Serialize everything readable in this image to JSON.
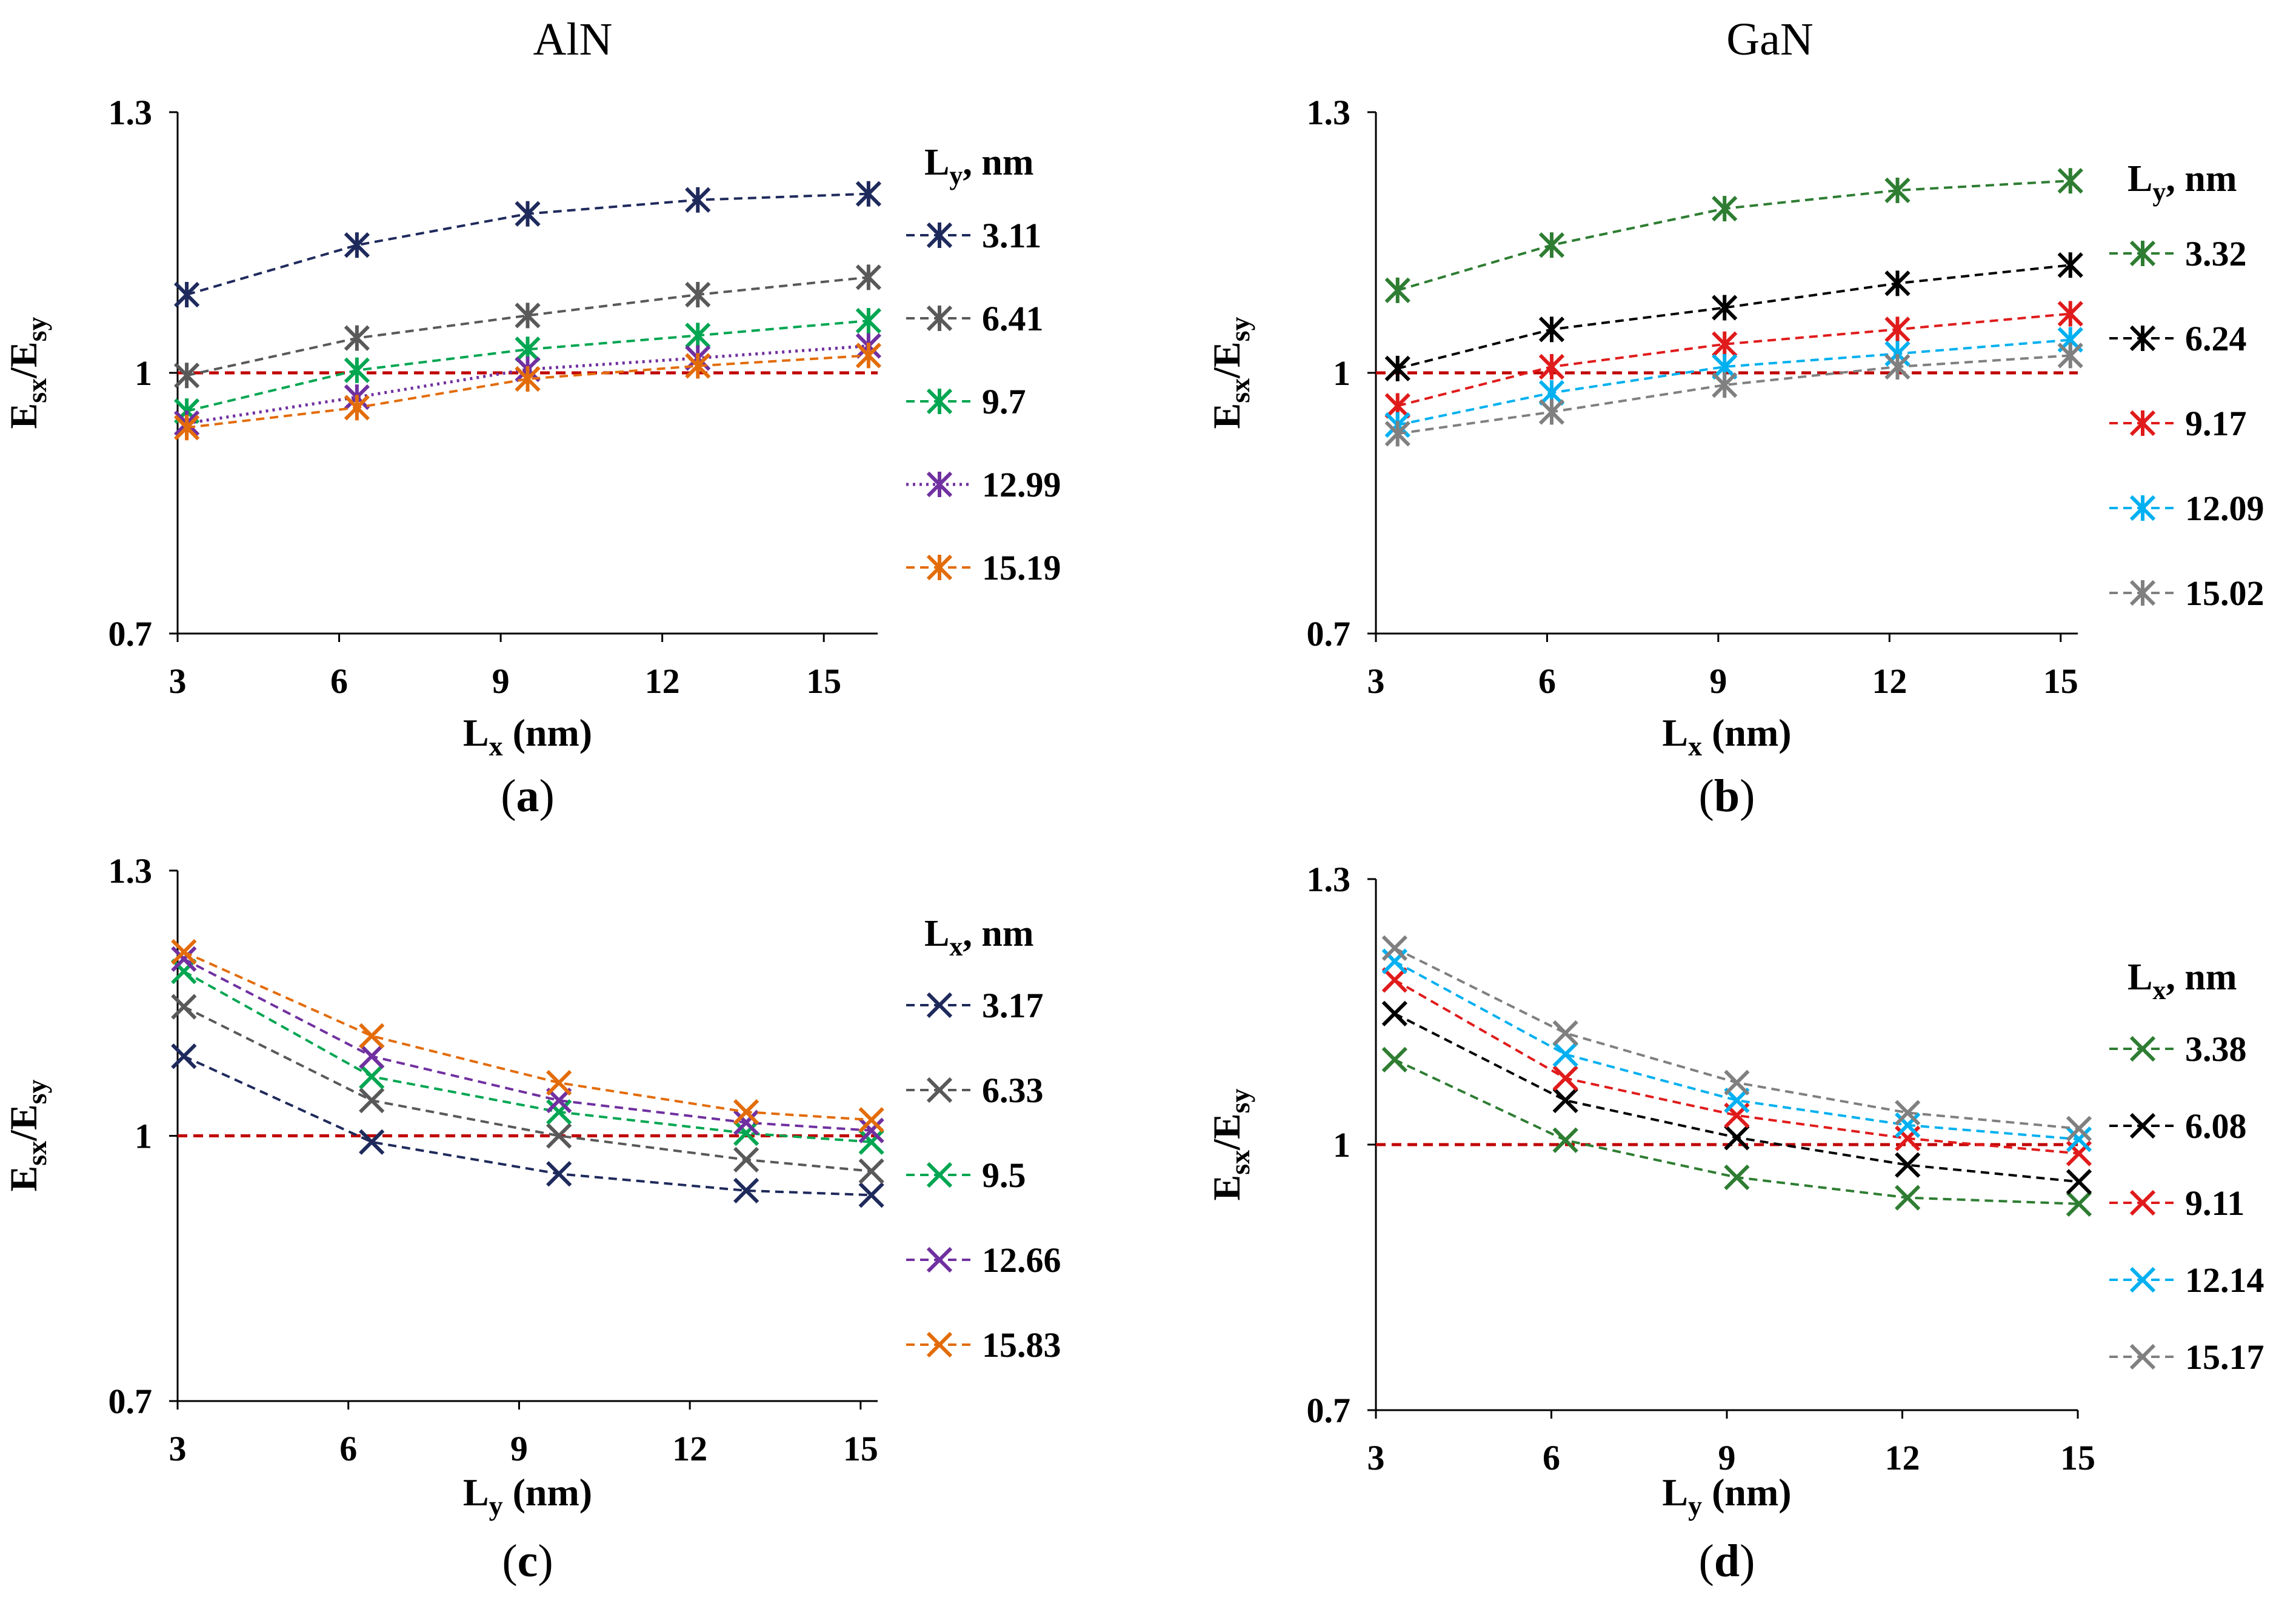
{
  "figure": {
    "column_titles": [
      "AlN",
      "GaN"
    ]
  },
  "chart_data": [
    {
      "type": "line",
      "panel_label": "a",
      "column_title": "AlN",
      "xlabel": "Lx (nm)",
      "xlabel_main": "L",
      "xlabel_sub": "x",
      "xlabel_rest": " (nm)",
      "ylabel": "Esx/Esy",
      "xlim": [
        3,
        16
      ],
      "ylim": [
        0.7,
        1.3
      ],
      "xticks": [
        3,
        6,
        9,
        12,
        15
      ],
      "yticks": [
        0.7,
        1,
        1.3
      ],
      "ytick_labels": [
        "0.7",
        "1",
        "1.3"
      ],
      "marker": "asterisk",
      "legend_title_main": "L",
      "legend_title_sub": "y",
      "legend_title_rest": ", nm",
      "reference_line": {
        "y": 1,
        "color": "#c00000"
      },
      "series": [
        {
          "name": "3.11",
          "color": "#1f2a5c",
          "dash": "dashed",
          "x": [
            3.17,
            6.33,
            9.5,
            12.66,
            15.83
          ],
          "values": [
            1.09,
            1.147,
            1.183,
            1.199,
            1.206
          ]
        },
        {
          "name": "6.41",
          "color": "#595959",
          "dash": "dashed",
          "x": [
            3.17,
            6.33,
            9.5,
            12.66,
            15.83
          ],
          "values": [
            0.997,
            1.04,
            1.066,
            1.09,
            1.11
          ]
        },
        {
          "name": "9.7",
          "color": "#00a651",
          "dash": "dashed",
          "x": [
            3.17,
            6.33,
            9.5,
            12.66,
            15.83
          ],
          "values": [
            0.956,
            1.003,
            1.027,
            1.043,
            1.06
          ]
        },
        {
          "name": "12.99",
          "color": "#7030a0",
          "dash": "dotted",
          "x": [
            3.17,
            6.33,
            9.5,
            12.66,
            15.83
          ],
          "values": [
            0.942,
            0.972,
            1.004,
            1.017,
            1.031
          ]
        },
        {
          "name": "15.19",
          "color": "#e36c0a",
          "dash": "dashed",
          "x": [
            3.17,
            6.33,
            9.5,
            12.66,
            15.83
          ],
          "values": [
            0.937,
            0.96,
            0.993,
            1.008,
            1.02
          ]
        }
      ]
    },
    {
      "type": "line",
      "panel_label": "b",
      "column_title": "GaN",
      "xlabel": "Lx (nm)",
      "xlabel_main": "L",
      "xlabel_sub": "x",
      "xlabel_rest": " (nm)",
      "ylabel": "Esx/Esy",
      "xlim": [
        3,
        15.3
      ],
      "ylim": [
        0.7,
        1.3
      ],
      "xticks": [
        3,
        6,
        9,
        12,
        15
      ],
      "yticks": [
        0.7,
        1,
        1.3
      ],
      "ytick_labels": [
        "0.7",
        "1",
        "1.3"
      ],
      "marker": "asterisk",
      "legend_title_main": "L",
      "legend_title_sub": "y",
      "legend_title_rest": ", nm",
      "reference_line": {
        "y": 1,
        "color": "#c00000"
      },
      "series": [
        {
          "name": "3.32",
          "color": "#2e7d32",
          "dash": "dashed",
          "x": [
            3.38,
            6.08,
            9.11,
            12.14,
            15.17
          ],
          "values": [
            1.095,
            1.147,
            1.189,
            1.21,
            1.221
          ]
        },
        {
          "name": "6.24",
          "color": "#000000",
          "dash": "dashed",
          "x": [
            3.38,
            6.08,
            9.11,
            12.14,
            15.17
          ],
          "values": [
            1.005,
            1.05,
            1.075,
            1.103,
            1.124
          ]
        },
        {
          "name": "9.17",
          "color": "#e01b1b",
          "dash": "dashed",
          "x": [
            3.38,
            6.08,
            9.11,
            12.14,
            15.17
          ],
          "values": [
            0.962,
            1.007,
            1.033,
            1.05,
            1.068
          ]
        },
        {
          "name": "12.09",
          "color": "#00b0f0",
          "dash": "dashed",
          "x": [
            3.38,
            6.08,
            9.11,
            12.14,
            15.17
          ],
          "values": [
            0.94,
            0.977,
            1.007,
            1.022,
            1.038
          ]
        },
        {
          "name": "15.02",
          "color": "#808080",
          "dash": "dashed",
          "x": [
            3.38,
            6.08,
            9.11,
            12.14,
            15.17
          ],
          "values": [
            0.93,
            0.955,
            0.986,
            1.007,
            1.02
          ]
        }
      ]
    },
    {
      "type": "line",
      "panel_label": "c",
      "column_title": "",
      "xlabel": "Ly (nm)",
      "xlabel_main": "L",
      "xlabel_sub": "y",
      "xlabel_rest": " (nm)",
      "ylabel": "Esx/Esy",
      "xlim": [
        3,
        15.3
      ],
      "ylim": [
        0.7,
        1.3
      ],
      "xticks": [
        3,
        6,
        9,
        12,
        15
      ],
      "yticks": [
        0.7,
        1,
        1.3
      ],
      "ytick_labels": [
        "0.7",
        "1",
        "1.3"
      ],
      "marker": "cross",
      "legend_title_main": "L",
      "legend_title_sub": "x",
      "legend_title_rest": ", nm",
      "reference_line": {
        "y": 1,
        "color": "#c00000"
      },
      "series": [
        {
          "name": "3.17",
          "color": "#1f2a5c",
          "dash": "dashed",
          "x": [
            3.11,
            6.41,
            9.7,
            12.99,
            15.19
          ],
          "values": [
            1.09,
            0.993,
            0.957,
            0.938,
            0.933
          ]
        },
        {
          "name": "6.33",
          "color": "#595959",
          "dash": "dashed",
          "x": [
            3.11,
            6.41,
            9.7,
            12.99,
            15.19
          ],
          "values": [
            1.146,
            1.04,
            1.0,
            0.973,
            0.96
          ]
        },
        {
          "name": "9.5",
          "color": "#00a651",
          "dash": "dashed",
          "x": [
            3.11,
            6.41,
            9.7,
            12.99,
            15.19
          ],
          "values": [
            1.186,
            1.067,
            1.027,
            1.003,
            0.993
          ]
        },
        {
          "name": "12.66",
          "color": "#7030a0",
          "dash": "dashed",
          "x": [
            3.11,
            6.41,
            9.7,
            12.99,
            15.19
          ],
          "values": [
            1.2,
            1.09,
            1.04,
            1.015,
            1.006
          ]
        },
        {
          "name": "15.83",
          "color": "#e36c0a",
          "dash": "dashed",
          "x": [
            3.11,
            6.41,
            9.7,
            12.99,
            15.19
          ],
          "values": [
            1.208,
            1.113,
            1.06,
            1.027,
            1.018
          ]
        }
      ]
    },
    {
      "type": "line",
      "panel_label": "d",
      "column_title": "",
      "xlabel": "Ly (nm)",
      "xlabel_main": "L",
      "xlabel_sub": "y",
      "xlabel_rest": " (nm)",
      "ylabel": "Esx/Esy",
      "xlim": [
        3,
        15
      ],
      "ylim": [
        0.7,
        1.3
      ],
      "xticks": [
        3,
        6,
        9,
        12,
        15
      ],
      "yticks": [
        0.7,
        1,
        1.3
      ],
      "ytick_labels": [
        "0.7",
        "1",
        "1.3"
      ],
      "marker": "cross",
      "legend_title_main": "L",
      "legend_title_sub": "x",
      "legend_title_rest": ", nm",
      "reference_line": {
        "y": 1,
        "color": "#c00000"
      },
      "series": [
        {
          "name": "3.38",
          "color": "#2e7d32",
          "dash": "dashed",
          "x": [
            3.32,
            6.24,
            9.17,
            12.09,
            15.02
          ],
          "values": [
            1.096,
            1.005,
            0.963,
            0.94,
            0.933
          ]
        },
        {
          "name": "6.08",
          "color": "#000000",
          "dash": "dashed",
          "x": [
            3.32,
            6.24,
            9.17,
            12.09,
            15.02
          ],
          "values": [
            1.148,
            1.05,
            1.008,
            0.977,
            0.958
          ]
        },
        {
          "name": "9.11",
          "color": "#e01b1b",
          "dash": "dashed",
          "x": [
            3.32,
            6.24,
            9.17,
            12.09,
            15.02
          ],
          "values": [
            1.186,
            1.075,
            1.033,
            1.007,
            0.99
          ]
        },
        {
          "name": "12.14",
          "color": "#00b0f0",
          "dash": "dashed",
          "x": [
            3.32,
            6.24,
            9.17,
            12.09,
            15.02
          ],
          "values": [
            1.207,
            1.102,
            1.05,
            1.022,
            1.006
          ]
        },
        {
          "name": "15.17",
          "color": "#808080",
          "dash": "dashed",
          "x": [
            3.32,
            6.24,
            9.17,
            12.09,
            15.02
          ],
          "values": [
            1.222,
            1.126,
            1.07,
            1.036,
            1.018
          ]
        }
      ]
    }
  ]
}
